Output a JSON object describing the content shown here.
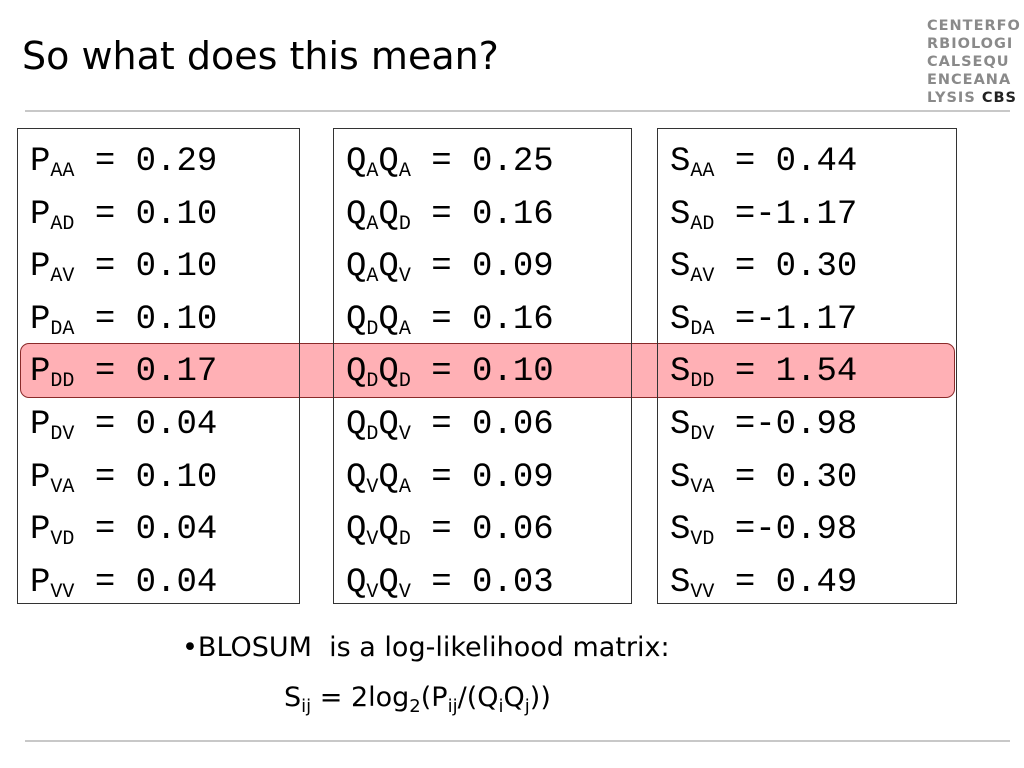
{
  "title": "So what does this mean?",
  "logo": {
    "lines": [
      "CENTERFO",
      "RBIOLOGI",
      "CALSEQU",
      "ENCEANA",
      "LYSIS"
    ],
    "mark": "CBS"
  },
  "boxes": [
    {
      "rows": [
        [
          {
            "t": "P"
          },
          {
            "sub": "AA"
          },
          {
            "t": " = 0.29"
          }
        ],
        [
          {
            "t": "P"
          },
          {
            "sub": "AD"
          },
          {
            "t": " = 0.10"
          }
        ],
        [
          {
            "t": "P"
          },
          {
            "sub": "AV"
          },
          {
            "t": " = 0.10"
          }
        ],
        [
          {
            "t": "P"
          },
          {
            "sub": "DA"
          },
          {
            "t": " = 0.10"
          }
        ],
        [
          {
            "t": "P"
          },
          {
            "sub": "DD"
          },
          {
            "t": " = 0.17"
          }
        ],
        [
          {
            "t": "P"
          },
          {
            "sub": "DV"
          },
          {
            "t": " = 0.04"
          }
        ],
        [
          {
            "t": "P"
          },
          {
            "sub": "VA"
          },
          {
            "t": " = 0.10"
          }
        ],
        [
          {
            "t": "P"
          },
          {
            "sub": "VD"
          },
          {
            "t": " = 0.04"
          }
        ],
        [
          {
            "t": "P"
          },
          {
            "sub": "VV"
          },
          {
            "t": " = 0.04"
          }
        ]
      ]
    },
    {
      "rows": [
        [
          {
            "t": "Q"
          },
          {
            "sub": "A"
          },
          {
            "t": "Q"
          },
          {
            "sub": "A"
          },
          {
            "t": " = 0.25"
          }
        ],
        [
          {
            "t": "Q"
          },
          {
            "sub": "A"
          },
          {
            "t": "Q"
          },
          {
            "sub": "D"
          },
          {
            "t": " = 0.16"
          }
        ],
        [
          {
            "t": "Q"
          },
          {
            "sub": "A"
          },
          {
            "t": "Q"
          },
          {
            "sub": "V"
          },
          {
            "t": " = 0.09"
          }
        ],
        [
          {
            "t": "Q"
          },
          {
            "sub": "D"
          },
          {
            "t": "Q"
          },
          {
            "sub": "A"
          },
          {
            "t": " = 0.16"
          }
        ],
        [
          {
            "t": "Q"
          },
          {
            "sub": "D"
          },
          {
            "t": "Q"
          },
          {
            "sub": "D"
          },
          {
            "t": " = 0.10"
          }
        ],
        [
          {
            "t": "Q"
          },
          {
            "sub": "D"
          },
          {
            "t": "Q"
          },
          {
            "sub": "V"
          },
          {
            "t": " = 0.06"
          }
        ],
        [
          {
            "t": "Q"
          },
          {
            "sub": "V"
          },
          {
            "t": "Q"
          },
          {
            "sub": "A"
          },
          {
            "t": " = 0.09"
          }
        ],
        [
          {
            "t": "Q"
          },
          {
            "sub": "V"
          },
          {
            "t": "Q"
          },
          {
            "sub": "D"
          },
          {
            "t": " = 0.06"
          }
        ],
        [
          {
            "t": "Q"
          },
          {
            "sub": "V"
          },
          {
            "t": "Q"
          },
          {
            "sub": "V"
          },
          {
            "t": " = 0.03"
          }
        ]
      ]
    },
    {
      "rows": [
        [
          {
            "t": "S"
          },
          {
            "sub": "AA"
          },
          {
            "t": " = 0.44"
          }
        ],
        [
          {
            "t": "S"
          },
          {
            "sub": "AD"
          },
          {
            "t": " =-1.17"
          }
        ],
        [
          {
            "t": "S"
          },
          {
            "sub": "AV"
          },
          {
            "t": " = 0.30"
          }
        ],
        [
          {
            "t": "S"
          },
          {
            "sub": "DA"
          },
          {
            "t": " =-1.17"
          }
        ],
        [
          {
            "t": "S"
          },
          {
            "sub": "DD"
          },
          {
            "t": " = 1.54"
          }
        ],
        [
          {
            "t": "S"
          },
          {
            "sub": "DV"
          },
          {
            "t": " =-0.98"
          }
        ],
        [
          {
            "t": "S"
          },
          {
            "sub": "VA"
          },
          {
            "t": " = 0.30"
          }
        ],
        [
          {
            "t": "S"
          },
          {
            "sub": "VD"
          },
          {
            "t": " =-0.98"
          }
        ],
        [
          {
            "t": "S"
          },
          {
            "sub": "VV"
          },
          {
            "t": " = 0.49"
          }
        ]
      ]
    }
  ],
  "bullet": "•BLOSUM  is a log-likelihood matrix:",
  "formula": [
    {
      "t": "S"
    },
    {
      "sub": "ij"
    },
    {
      "t": " = 2log"
    },
    {
      "sub": "2"
    },
    {
      "t": "(P"
    },
    {
      "sub": "ij"
    },
    {
      "t": "/(Q"
    },
    {
      "sub": "i"
    },
    {
      "t": "Q"
    },
    {
      "sub": "j"
    },
    {
      "t": "))"
    }
  ]
}
